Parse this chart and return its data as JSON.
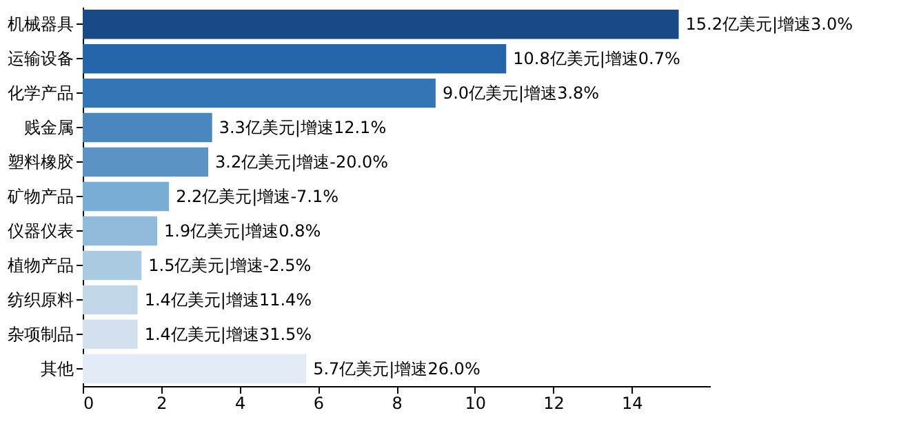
{
  "chart_data": {
    "type": "bar",
    "orientation": "horizontal",
    "categories": [
      "机械器具",
      "运输设备",
      "化学产品",
      "贱金属",
      "塑料橡胶",
      "矿物产品",
      "仪器仪表",
      "植物产品",
      "纺织原料",
      "杂项制品",
      "其他"
    ],
    "values": [
      15.2,
      10.8,
      9.0,
      3.3,
      3.2,
      2.2,
      1.9,
      1.5,
      1.4,
      1.4,
      5.7
    ],
    "colors": [
      "#1a4a86",
      "#2464a8",
      "#3476b5",
      "#4a87be",
      "#5a93c4",
      "#7aaed4",
      "#8fbad9",
      "#aacbe2",
      "#c3d7ea",
      "#d3e1ef",
      "#e3ecf6"
    ],
    "value_labels": [
      "15.2亿美元|增速3.0%",
      "10.8亿美元|增速0.7%",
      "9.0亿美元|增速3.8%",
      "3.3亿美元|增速12.1%",
      "3.2亿美元|增速-20.0%",
      "2.2亿美元|增速-7.1%",
      "1.9亿美元|增速0.8%",
      "1.5亿美元|增速-2.5%",
      "1.4亿美元|增速11.4%",
      "1.4亿美元|增速31.5%",
      "5.7亿美元|增速26.0%"
    ],
    "xlim": [
      0,
      16
    ],
    "xticks": [
      0,
      2,
      4,
      6,
      8,
      10,
      12,
      14
    ],
    "grid": false
  }
}
